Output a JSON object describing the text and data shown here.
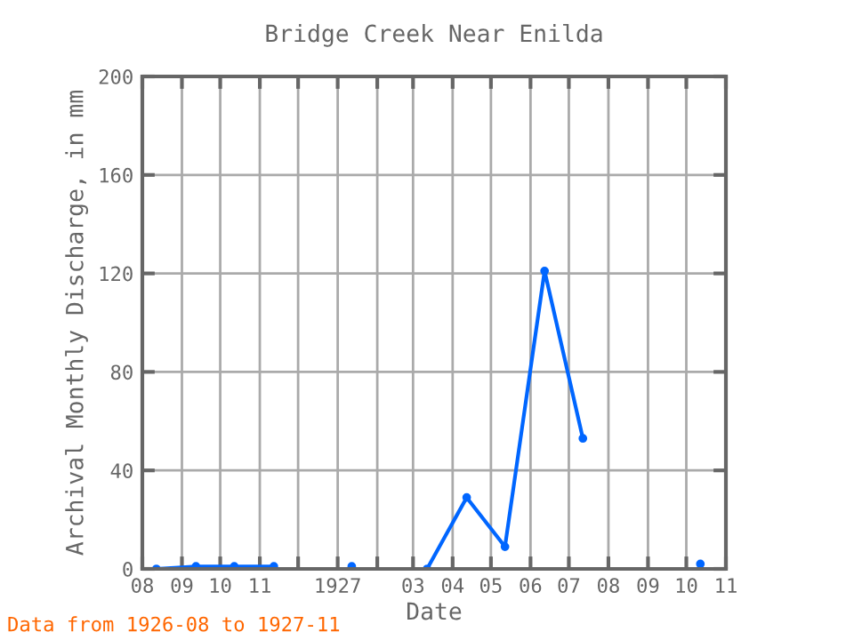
{
  "chart_data": {
    "type": "line",
    "title": "Bridge Creek Near Enilda",
    "xlabel": "Date",
    "ylabel": "Archival Monthly Discharge, in mm",
    "x": [
      "1926-08-12",
      "1926-09-12",
      "1926-10-12",
      "1926-11-12",
      "1926-12-12",
      "1927-01-12",
      "1927-02-12",
      "1927-03-12",
      "1927-04-12",
      "1927-05-12",
      "1927-06-12",
      "1927-07-12",
      "1927-08-12",
      "1927-09-12",
      "1927-10-12"
    ],
    "series": [
      {
        "color": "#0066ff",
        "values": [
          0,
          1,
          1,
          1,
          null,
          1,
          null,
          0,
          29,
          9,
          121,
          53,
          null,
          null,
          2
        ]
      }
    ],
    "xlim": [
      "1926-08-01",
      "1927-11-01"
    ],
    "xticks": [
      {
        "value": "1926-08-01",
        "label": "08"
      },
      {
        "value": "1926-09-01",
        "label": "09"
      },
      {
        "value": "1926-10-01",
        "label": "10"
      },
      {
        "value": "1926-11-01",
        "label": "11"
      },
      {
        "value": "1926-12-01",
        "label": null
      },
      {
        "value": "1927-01-01",
        "label": "1927"
      },
      {
        "value": "1927-02-01",
        "label": null
      },
      {
        "value": "1927-03-01",
        "label": "03"
      },
      {
        "value": "1927-04-01",
        "label": "04"
      },
      {
        "value": "1927-05-01",
        "label": "05"
      },
      {
        "value": "1927-06-01",
        "label": "06"
      },
      {
        "value": "1927-07-01",
        "label": "07"
      },
      {
        "value": "1927-08-01",
        "label": "08"
      },
      {
        "value": "1927-09-01",
        "label": "09"
      },
      {
        "value": "1927-10-01",
        "label": "10"
      },
      {
        "value": "1927-11-01",
        "label": "11"
      }
    ],
    "ylim": [
      0,
      200
    ],
    "yticks": [
      0,
      40,
      80,
      120,
      160,
      200
    ],
    "grid": true,
    "marker": "circle",
    "line_style": "solid",
    "annotations": [
      "Data from 1926-08 to 1927-11"
    ]
  }
}
